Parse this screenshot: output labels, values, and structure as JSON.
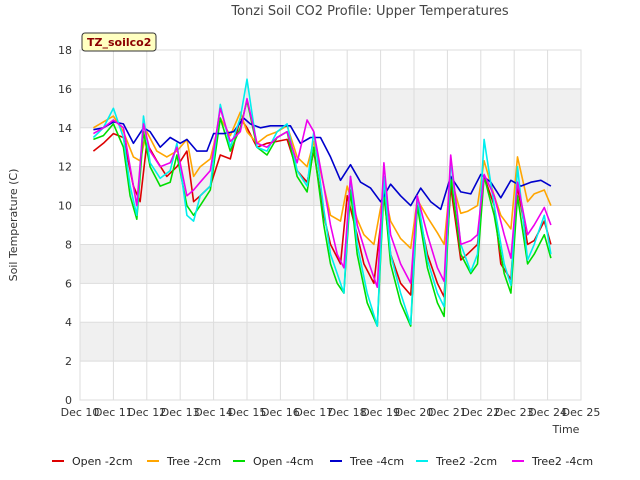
{
  "chart_data": {
    "type": "line",
    "title": "Tonzi Soil CO2 Profile: Upper Temperatures",
    "xlabel": "Time",
    "ylabel": "Soil Temperature (C)",
    "tag": "TZ_soilco2",
    "x_range": [
      10,
      25
    ],
    "ylim": [
      0,
      18
    ],
    "x_ticks": [
      {
        "value": 10,
        "label": "Dec 10"
      },
      {
        "value": 11,
        "label": "Dec 11"
      },
      {
        "value": 12,
        "label": "Dec 12"
      },
      {
        "value": 13,
        "label": "Dec 13"
      },
      {
        "value": 14,
        "label": "Dec 14"
      },
      {
        "value": 15,
        "label": "Dec 15"
      },
      {
        "value": 16,
        "label": "Dec 16"
      },
      {
        "value": 17,
        "label": "Dec 17"
      },
      {
        "value": 18,
        "label": "Dec 18"
      },
      {
        "value": 19,
        "label": "Dec 19"
      },
      {
        "value": 20,
        "label": "Dec 20"
      },
      {
        "value": 21,
        "label": "Dec 21"
      },
      {
        "value": 22,
        "label": "Dec 22"
      },
      {
        "value": 23,
        "label": "Dec 23"
      },
      {
        "value": 24,
        "label": "Dec 24"
      },
      {
        "value": 25,
        "label": "Dec 25"
      }
    ],
    "y_ticks": [
      0,
      2,
      4,
      6,
      8,
      10,
      12,
      14,
      16,
      18
    ],
    "grid": true,
    "series": [
      {
        "name": "Open -2cm",
        "color": "#dd0000",
        "x": [
          10.4,
          10.7,
          11.0,
          11.3,
          11.6,
          11.8,
          12.0,
          12.3,
          12.6,
          12.9,
          13.2,
          13.4,
          13.6,
          13.9,
          14.2,
          14.5,
          14.8,
          15.0,
          15.3,
          15.6,
          15.9,
          16.2,
          16.5,
          16.8,
          17.0,
          17.3,
          17.5,
          17.8,
          18.0,
          18.3,
          18.5,
          18.8,
          19.1,
          19.3,
          19.6,
          19.9,
          20.1,
          20.4,
          20.7,
          20.9,
          21.1,
          21.4,
          21.6,
          21.9,
          22.1,
          22.4,
          22.6,
          22.9,
          23.1,
          23.4,
          23.6,
          23.9,
          24.1
        ],
        "y": [
          12.8,
          13.2,
          13.7,
          13.5,
          11.0,
          10.2,
          13.2,
          12.3,
          11.5,
          12.0,
          12.8,
          10.2,
          10.5,
          11.0,
          12.6,
          12.4,
          14.5,
          14.0,
          13.0,
          13.2,
          13.3,
          13.4,
          11.8,
          11.2,
          12.8,
          9.5,
          8.0,
          7.0,
          10.5,
          8.5,
          7.0,
          6.0,
          10.5,
          7.5,
          6.0,
          5.4,
          10.0,
          7.5,
          6.0,
          5.3,
          11.0,
          7.2,
          7.5,
          8.0,
          11.5,
          10.0,
          7.0,
          6.2,
          11.0,
          8.0,
          8.2,
          9.2,
          8.0
        ]
      },
      {
        "name": "Tree -2cm",
        "color": "#ffa500",
        "x": [
          10.4,
          10.7,
          11.0,
          11.3,
          11.6,
          11.8,
          12.0,
          12.3,
          12.6,
          12.9,
          13.2,
          13.4,
          13.6,
          13.9,
          14.2,
          14.5,
          14.8,
          15.0,
          15.3,
          15.6,
          15.9,
          16.2,
          16.5,
          16.8,
          17.0,
          17.3,
          17.5,
          17.8,
          18.0,
          18.3,
          18.5,
          18.8,
          19.1,
          19.3,
          19.6,
          19.9,
          20.1,
          20.4,
          20.7,
          20.9,
          21.1,
          21.4,
          21.6,
          21.9,
          22.1,
          22.4,
          22.6,
          22.9,
          23.1,
          23.4,
          23.6,
          23.9,
          24.1
        ],
        "y": [
          14.0,
          14.3,
          14.6,
          13.8,
          12.5,
          12.3,
          13.8,
          12.8,
          12.5,
          12.8,
          13.4,
          11.5,
          12.0,
          12.4,
          14.5,
          13.6,
          14.8,
          13.8,
          13.2,
          13.6,
          13.8,
          14.1,
          12.5,
          12.0,
          13.3,
          11.0,
          9.5,
          9.2,
          11.0,
          9.3,
          8.5,
          8.0,
          10.8,
          9.2,
          8.3,
          7.8,
          10.3,
          9.4,
          8.6,
          8.0,
          11.5,
          9.6,
          9.7,
          10.0,
          12.3,
          10.5,
          9.5,
          8.8,
          12.5,
          10.2,
          10.6,
          10.8,
          10.0
        ]
      },
      {
        "name": "Open -4cm",
        "color": "#00dd00",
        "x": [
          10.4,
          10.7,
          11.0,
          11.3,
          11.5,
          11.7,
          11.9,
          12.1,
          12.4,
          12.7,
          12.9,
          13.2,
          13.4,
          13.6,
          13.9,
          14.2,
          14.5,
          14.8,
          15.0,
          15.3,
          15.6,
          15.9,
          16.2,
          16.5,
          16.8,
          17.0,
          17.3,
          17.5,
          17.7,
          17.9,
          18.1,
          18.3,
          18.6,
          18.9,
          19.1,
          19.3,
          19.6,
          19.9,
          20.1,
          20.4,
          20.7,
          20.9,
          21.1,
          21.4,
          21.7,
          21.9,
          22.1,
          22.4,
          22.7,
          22.9,
          23.1,
          23.4,
          23.6,
          23.9,
          24.1
        ],
        "y": [
          13.4,
          13.6,
          14.2,
          13.0,
          10.5,
          9.3,
          13.8,
          12.0,
          11.0,
          11.2,
          12.6,
          10.0,
          9.5,
          10.0,
          10.8,
          14.5,
          12.8,
          14.0,
          15.4,
          13.0,
          12.6,
          13.5,
          13.8,
          11.5,
          10.7,
          13.0,
          9.0,
          7.0,
          6.0,
          5.5,
          10.8,
          7.5,
          5.0,
          3.8,
          10.8,
          7.0,
          5.0,
          3.8,
          10.0,
          6.8,
          5.0,
          4.3,
          11.5,
          7.5,
          6.5,
          7.0,
          11.5,
          9.5,
          6.5,
          5.5,
          10.5,
          7.0,
          7.5,
          8.5,
          7.3
        ]
      },
      {
        "name": "Tree -4cm",
        "color": "#0000cc",
        "x": [
          10.4,
          10.7,
          11.0,
          11.3,
          11.6,
          11.9,
          12.1,
          12.4,
          12.7,
          13.0,
          13.2,
          13.5,
          13.8,
          14.0,
          14.3,
          14.6,
          14.9,
          15.1,
          15.4,
          15.7,
          16.0,
          16.3,
          16.6,
          16.9,
          17.2,
          17.5,
          17.8,
          18.1,
          18.4,
          18.7,
          19.0,
          19.3,
          19.6,
          19.9,
          20.2,
          20.5,
          20.8,
          21.1,
          21.4,
          21.7,
          22.0,
          22.3,
          22.6,
          22.9,
          23.2,
          23.5,
          23.8,
          24.1
        ],
        "y": [
          13.9,
          14.0,
          14.3,
          14.2,
          13.2,
          14.0,
          13.8,
          13.0,
          13.5,
          13.2,
          13.4,
          12.8,
          12.8,
          13.7,
          13.7,
          13.8,
          14.5,
          14.2,
          14.0,
          14.1,
          14.1,
          14.1,
          13.2,
          13.5,
          13.5,
          12.5,
          11.3,
          12.1,
          11.2,
          10.9,
          10.2,
          11.1,
          10.5,
          10.0,
          10.9,
          10.2,
          9.8,
          11.5,
          10.7,
          10.6,
          11.6,
          11.2,
          10.4,
          11.3,
          11.0,
          11.2,
          11.3,
          11.0
        ]
      },
      {
        "name": "Tree2 -2cm",
        "color": "#00eeee",
        "x": [
          10.4,
          10.7,
          11.0,
          11.3,
          11.5,
          11.7,
          11.9,
          12.1,
          12.4,
          12.7,
          12.9,
          13.2,
          13.4,
          13.6,
          13.9,
          14.2,
          14.5,
          14.8,
          15.0,
          15.3,
          15.6,
          15.9,
          16.2,
          16.5,
          16.8,
          17.0,
          17.3,
          17.5,
          17.7,
          17.9,
          18.1,
          18.3,
          18.6,
          18.9,
          19.1,
          19.3,
          19.6,
          19.9,
          20.1,
          20.4,
          20.7,
          20.9,
          21.1,
          21.4,
          21.7,
          21.9,
          22.1,
          22.4,
          22.7,
          22.9,
          23.1,
          23.4,
          23.6,
          23.9,
          24.1
        ],
        "y": [
          13.5,
          14.0,
          15.0,
          13.5,
          11.0,
          9.5,
          14.6,
          12.2,
          11.4,
          11.8,
          13.2,
          9.5,
          9.2,
          10.5,
          11.0,
          15.2,
          13.0,
          14.5,
          16.5,
          13.0,
          12.8,
          13.8,
          14.2,
          11.8,
          11.0,
          13.8,
          9.8,
          7.5,
          6.5,
          5.5,
          11.5,
          8.0,
          5.5,
          3.8,
          11.5,
          7.5,
          5.5,
          3.9,
          10.5,
          7.2,
          5.5,
          4.8,
          12.3,
          8.0,
          6.6,
          7.5,
          13.4,
          10.0,
          7.0,
          5.9,
          12.0,
          7.2,
          8.0,
          9.5,
          7.5
        ]
      },
      {
        "name": "Tree2 -4cm",
        "color": "#ee00ee",
        "x": [
          10.4,
          10.7,
          11.0,
          11.3,
          11.5,
          11.7,
          11.9,
          12.1,
          12.4,
          12.7,
          12.9,
          13.2,
          13.4,
          13.6,
          13.9,
          14.2,
          14.5,
          14.8,
          15.0,
          15.3,
          15.6,
          15.9,
          16.2,
          16.5,
          16.8,
          17.0,
          17.3,
          17.5,
          17.7,
          17.9,
          18.1,
          18.3,
          18.6,
          18.9,
          19.1,
          19.3,
          19.6,
          19.9,
          20.1,
          20.4,
          20.7,
          20.9,
          21.1,
          21.4,
          21.7,
          21.9,
          22.1,
          22.4,
          22.7,
          22.9,
          23.1,
          23.4,
          23.6,
          23.9,
          24.1
        ],
        "y": [
          13.7,
          14.0,
          14.4,
          14.0,
          12.0,
          10.0,
          14.2,
          12.8,
          12.0,
          12.2,
          13.0,
          10.5,
          10.8,
          11.2,
          11.8,
          15.0,
          13.3,
          13.8,
          15.5,
          13.2,
          13.0,
          13.5,
          13.8,
          12.2,
          14.4,
          13.8,
          11.0,
          9.0,
          7.5,
          6.8,
          11.5,
          9.0,
          7.3,
          5.8,
          12.2,
          8.5,
          7.0,
          6.0,
          10.5,
          8.5,
          6.8,
          6.1,
          12.6,
          8.0,
          8.2,
          8.5,
          11.6,
          10.5,
          8.5,
          7.3,
          11.2,
          8.5,
          9.0,
          9.9,
          9.0
        ]
      }
    ]
  }
}
